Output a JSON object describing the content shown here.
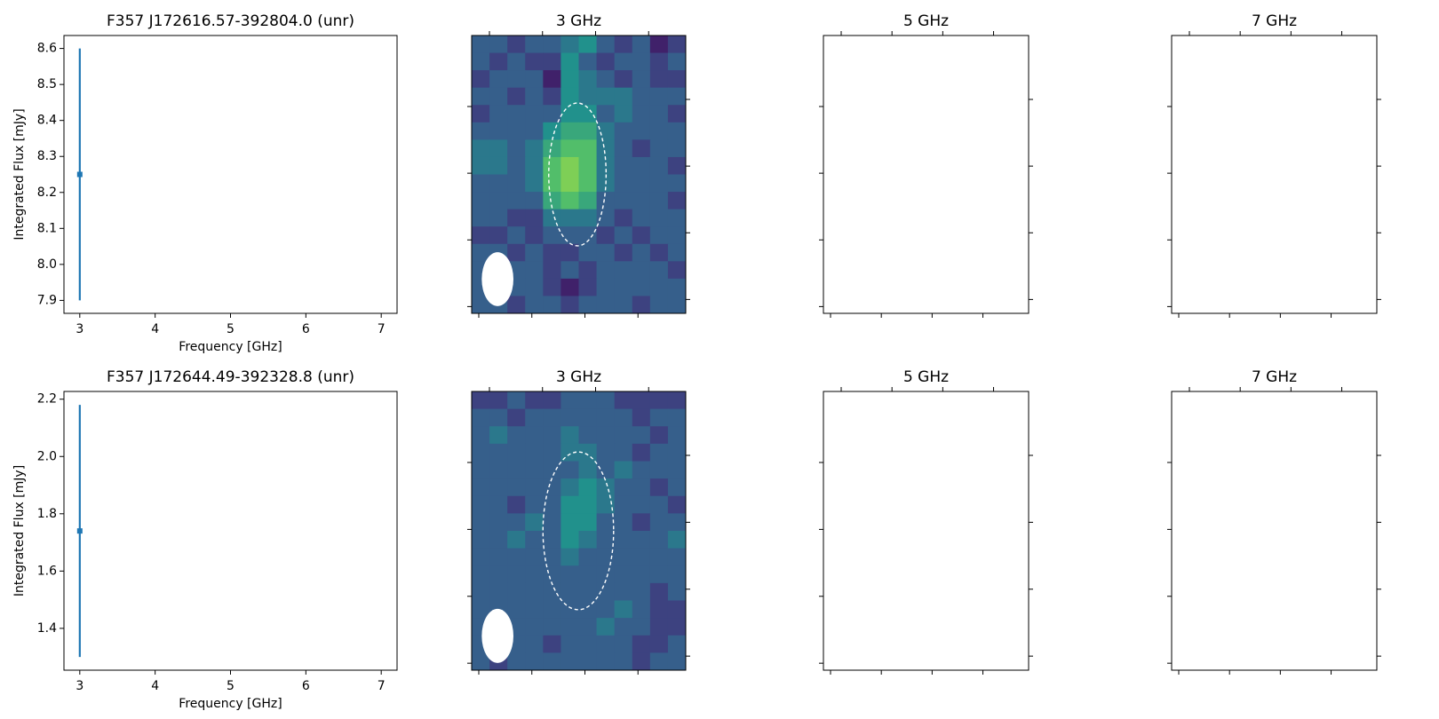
{
  "chart_data": [
    {
      "type": "errorbar",
      "title": "F357 J172616.57-392804.0 (unr)",
      "xlabel": "Frequency [GHz]",
      "ylabel": "Integrated Flux [mJy]",
      "x": [
        3
      ],
      "values": [
        8.25
      ],
      "errors": [
        0.35
      ],
      "color": "#1f77b4",
      "xlim": [
        2.79,
        7.21
      ],
      "xticks": [
        3,
        4,
        5,
        6,
        7
      ],
      "ylim": [
        7.864,
        8.636
      ],
      "yticks": [
        7.9,
        {
          "value": 8,
          "label": "8.0"
        },
        8.1,
        8.2,
        8.3,
        8.4,
        8.5,
        8.6
      ]
    },
    {
      "type": "heatmap",
      "title": "3 GHz",
      "colormap": "viridis",
      "clim": [
        0,
        10
      ],
      "values": [
        [
          3,
          3,
          2,
          3,
          3,
          4,
          5,
          3,
          2,
          3,
          1,
          2
        ],
        [
          3,
          2,
          3,
          2,
          2,
          5,
          3,
          2,
          3,
          3,
          2,
          3
        ],
        [
          2,
          3,
          3,
          3,
          1,
          5,
          4,
          3,
          2,
          3,
          2,
          2
        ],
        [
          3,
          3,
          2,
          3,
          2,
          5,
          4,
          4,
          4,
          3,
          3,
          3
        ],
        [
          2,
          3,
          3,
          3,
          3,
          5,
          5,
          3,
          4,
          3,
          3,
          2
        ],
        [
          3,
          3,
          3,
          3,
          5,
          6,
          6,
          4,
          3,
          3,
          3,
          3
        ],
        [
          4,
          4,
          3,
          4,
          6,
          7,
          7,
          4,
          3,
          2,
          3,
          3
        ],
        [
          4,
          4,
          3,
          4,
          7,
          8,
          7,
          4,
          3,
          3,
          3,
          2
        ],
        [
          3,
          3,
          3,
          4,
          7,
          8,
          7,
          4,
          3,
          3,
          3,
          3
        ],
        [
          3,
          3,
          3,
          3,
          6,
          7,
          6,
          3,
          3,
          3,
          3,
          2
        ],
        [
          3,
          3,
          2,
          2,
          4,
          4,
          4,
          3,
          2,
          3,
          3,
          3
        ],
        [
          2,
          2,
          3,
          2,
          3,
          3,
          3,
          2,
          3,
          2,
          3,
          3
        ],
        [
          3,
          3,
          2,
          3,
          2,
          2,
          3,
          3,
          2,
          3,
          2,
          3
        ],
        [
          3,
          3,
          3,
          3,
          2,
          3,
          2,
          3,
          3,
          3,
          3,
          2
        ],
        [
          3,
          3,
          3,
          3,
          2,
          1,
          2,
          3,
          3,
          3,
          3,
          3
        ],
        [
          3,
          3,
          2,
          3,
          3,
          2,
          3,
          3,
          3,
          2,
          3,
          3
        ]
      ]
    },
    {
      "type": "empty",
      "title": "5 GHz"
    },
    {
      "type": "empty",
      "title": "7 GHz"
    },
    {
      "type": "errorbar",
      "title": "F357 J172644.49-392328.8 (unr)",
      "xlabel": "Frequency [GHz]",
      "ylabel": "Integrated Flux [mJy]",
      "x": [
        3
      ],
      "values": [
        1.74
      ],
      "errors": [
        0.44
      ],
      "color": "#1f77b4",
      "xlim": [
        2.79,
        7.21
      ],
      "xticks": [
        3,
        4,
        5,
        6,
        7
      ],
      "ylim": [
        1.254,
        2.227
      ],
      "yticks": [
        1.4,
        1.6,
        1.8,
        {
          "value": 2,
          "label": "2.0"
        },
        2.2
      ]
    },
    {
      "type": "heatmap",
      "title": "3 GHz",
      "colormap": "viridis",
      "clim": [
        0,
        10
      ],
      "values": [
        [
          2,
          2,
          3,
          2,
          2,
          3,
          3,
          3,
          2,
          2,
          2,
          2
        ],
        [
          3,
          3,
          2,
          3,
          3,
          3,
          3,
          3,
          3,
          2,
          3,
          3
        ],
        [
          3,
          4,
          3,
          3,
          3,
          4,
          3,
          3,
          3,
          3,
          2,
          3
        ],
        [
          3,
          3,
          3,
          3,
          3,
          4,
          4,
          3,
          3,
          2,
          3,
          3
        ],
        [
          3,
          3,
          3,
          3,
          3,
          3,
          4,
          3,
          4,
          3,
          3,
          3
        ],
        [
          3,
          3,
          3,
          3,
          3,
          4,
          5,
          4,
          3,
          3,
          2,
          3
        ],
        [
          3,
          3,
          2,
          3,
          3,
          5,
          5,
          4,
          3,
          3,
          3,
          2
        ],
        [
          3,
          3,
          3,
          4,
          3,
          5,
          5,
          3,
          3,
          2,
          3,
          3
        ],
        [
          3,
          3,
          4,
          3,
          3,
          5,
          4,
          3,
          3,
          3,
          3,
          4
        ],
        [
          3,
          3,
          3,
          3,
          3,
          4,
          3,
          3,
          3,
          3,
          3,
          3
        ],
        [
          3,
          3,
          3,
          3,
          3,
          3,
          3,
          3,
          3,
          3,
          3,
          3
        ],
        [
          3,
          3,
          3,
          3,
          3,
          3,
          3,
          3,
          3,
          3,
          2,
          3
        ],
        [
          3,
          3,
          3,
          3,
          3,
          3,
          3,
          3,
          4,
          3,
          2,
          2
        ],
        [
          3,
          3,
          3,
          3,
          3,
          3,
          3,
          4,
          3,
          3,
          2,
          2
        ],
        [
          3,
          3,
          3,
          3,
          2,
          3,
          3,
          3,
          3,
          2,
          2,
          3
        ],
        [
          3,
          2,
          3,
          3,
          3,
          3,
          3,
          3,
          3,
          2,
          3,
          3
        ]
      ]
    },
    {
      "type": "empty",
      "title": "5 GHz"
    },
    {
      "type": "empty",
      "title": "7 GHz"
    }
  ]
}
